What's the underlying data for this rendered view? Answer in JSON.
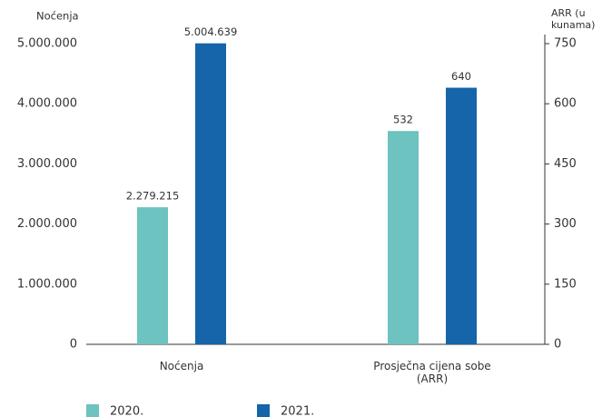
{
  "chart_data": {
    "type": "bar",
    "y_axis_label": "Noćenja",
    "y2_axis_label": "ARR (u kunama)",
    "categories": [
      "Noćenja",
      "Prosječna cijena sobe (ARR)"
    ],
    "category_axes": [
      "y",
      "y2"
    ],
    "series": [
      {
        "name": "2020.",
        "color": "#6cc3bf",
        "values": [
          2279215,
          532
        ],
        "value_labels": [
          "2.279.215",
          "532"
        ]
      },
      {
        "name": "2021.",
        "color": "#1664a9",
        "values": [
          5004639,
          640
        ],
        "value_labels": [
          "5.004.639",
          "640"
        ]
      }
    ],
    "ylim": [
      0,
      5000000
    ],
    "yticks": [
      0,
      {
        "value": 1000000,
        "label": "1.000.000"
      },
      {
        "value": 2000000,
        "label": "2.000.000"
      },
      {
        "value": 3000000,
        "label": "3.000.000"
      },
      {
        "value": 4000000,
        "label": "4.000.000"
      },
      {
        "value": 5000000,
        "label": "5.000.000"
      }
    ],
    "y2lim": [
      0,
      750
    ],
    "y2ticks": [
      0,
      150,
      300,
      450,
      600,
      750
    ],
    "legend": "bottom-left",
    "grid": false
  }
}
